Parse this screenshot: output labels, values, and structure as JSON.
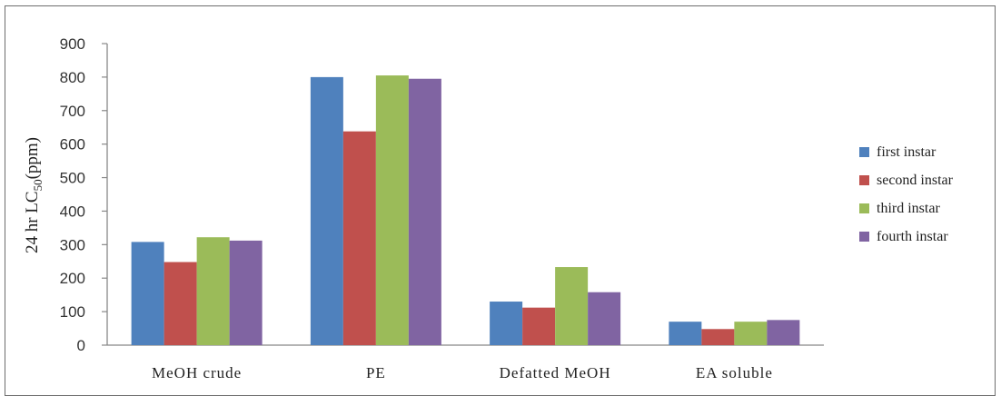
{
  "chart_data": {
    "type": "bar",
    "categories": [
      "MeOH crude",
      "PE",
      "Defatted MeOH",
      "EA soluble"
    ],
    "series": [
      {
        "name": "first instar",
        "color": "#4f81bd",
        "values": [
          308,
          800,
          130,
          70
        ]
      },
      {
        "name": "second instar",
        "color": "#c0504d",
        "values": [
          248,
          638,
          112,
          48
        ]
      },
      {
        "name": "third instar",
        "color": "#9bbb59",
        "values": [
          322,
          805,
          233,
          70
        ]
      },
      {
        "name": "fourth instar",
        "color": "#8064a2",
        "values": [
          312,
          795,
          158,
          75
        ]
      }
    ],
    "ylabel": "24 hr LC",
    "ylabel_subscript": "50",
    "ylabel_suffix": "(ppm)",
    "yticks": [
      "900",
      "800",
      "700",
      "600",
      "500",
      "400",
      "300",
      "200",
      "100",
      "0"
    ],
    "ylim": [
      0,
      900
    ],
    "grid": false,
    "legend_position": "right"
  }
}
